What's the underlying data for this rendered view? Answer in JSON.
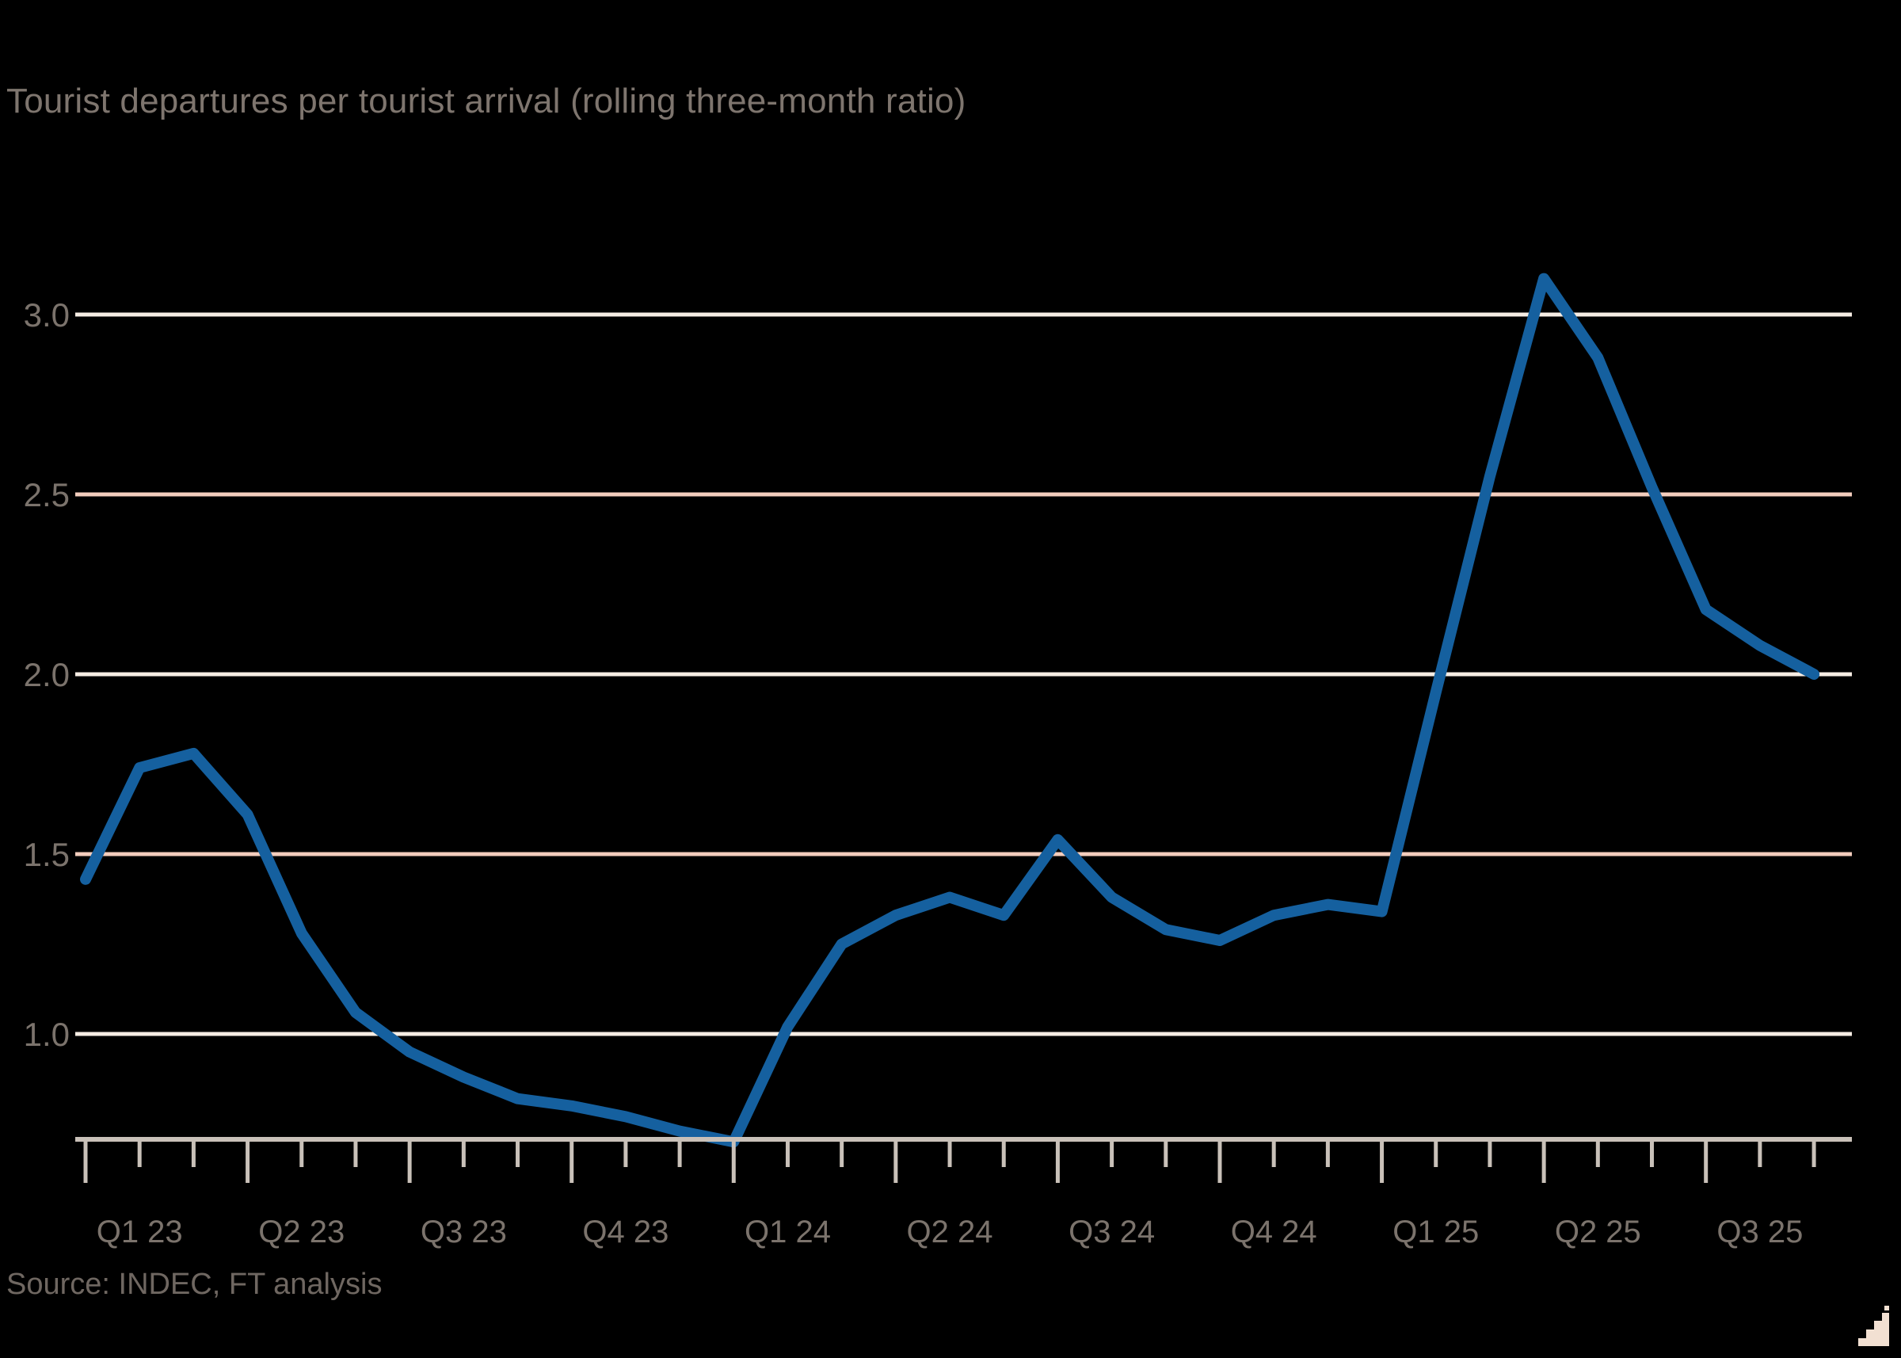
{
  "chart": {
    "title": "Tourist departures per tourist arrival (rolling three-month ratio)",
    "source": "Source: INDEC, FT analysis",
    "colors": {
      "background": "#000000",
      "line": "#15609f",
      "gridline_major": "#f6ede4",
      "gridline_accent": "#f3cdbd",
      "axis": "#c9c1b9",
      "text": "#7b736c",
      "ft_mark": "#f2e0d2"
    }
  },
  "chart_data": {
    "type": "line",
    "title": "Tourist departures per tourist arrival (rolling three-month ratio)",
    "xlabel": "",
    "ylabel": "",
    "grid": "horizontal",
    "legend": "none",
    "ylim": [
      0.7,
      3.2
    ],
    "yticks": [
      1.0,
      1.5,
      2.0,
      2.5,
      3.0
    ],
    "ytick_labels": [
      "1.0",
      "1.5",
      "2.0",
      "2.5",
      "3.0"
    ],
    "accent_yticks": [
      1.5,
      2.5
    ],
    "x_tick_labels": [
      "Q1 23",
      "Q2 23",
      "Q3 23",
      "Q4 23",
      "Q1 24",
      "Q2 24",
      "Q3 24",
      "Q4 24",
      "Q1 25",
      "Q2 25",
      "Q3 25"
    ],
    "x": [
      "Jan 2023",
      "Feb 2023",
      "Mar 2023",
      "Apr 2023",
      "May 2023",
      "Jun 2023",
      "Jul 2023",
      "Aug 2023",
      "Sep 2023",
      "Oct 2023",
      "Nov 2023",
      "Dec 2023",
      "Jan 2024",
      "Feb 2024",
      "Mar 2024",
      "Apr 2024",
      "May 2024",
      "Jun 2024",
      "Jul 2024",
      "Aug 2024",
      "Sep 2024",
      "Oct 2024",
      "Nov 2024",
      "Dec 2024",
      "Jan 2025",
      "Feb 2025",
      "Mar 2025",
      "Apr 2025",
      "May 2025",
      "Jun 2025",
      "Jul 2025",
      "Aug 2025",
      "Sep 2025"
    ],
    "series": [
      {
        "name": "Tourist departures per tourist arrival",
        "values": [
          1.43,
          1.74,
          1.78,
          1.61,
          1.28,
          1.06,
          0.95,
          0.88,
          0.82,
          0.8,
          0.77,
          0.73,
          0.7,
          1.02,
          1.25,
          1.33,
          1.38,
          1.33,
          1.54,
          1.38,
          1.29,
          1.26,
          1.33,
          1.36,
          1.34,
          1.95,
          2.55,
          3.1,
          2.88,
          2.52,
          2.18,
          2.08,
          2.0
        ]
      }
    ]
  }
}
